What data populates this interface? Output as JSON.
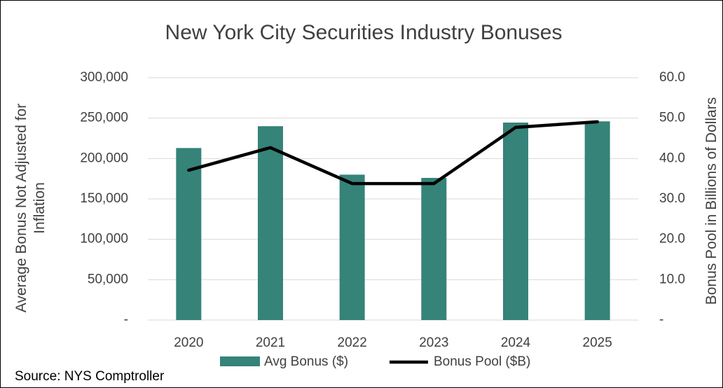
{
  "chart_data": {
    "type": "bar_line",
    "title": "New York City Securities Industry Bonuses",
    "y_label": "Average Bonus Not Adjusted for Inflation",
    "y2_label": "Bonus Pool in Billions of Dollars",
    "source": "Source: NYS Comptroller",
    "categories": [
      "2020",
      "2021",
      "2022",
      "2023",
      "2024",
      "2025"
    ],
    "series": [
      {
        "name": "Avg Bonus ($)",
        "type": "bar",
        "color": "#358379",
        "values": [
          213000,
          240000,
          180000,
          176000,
          244500,
          246000
        ]
      },
      {
        "name": "Bonus Pool ($B)",
        "type": "line",
        "axis": "y2",
        "color": "#000000",
        "values": [
          37.1,
          42.7,
          33.8,
          33.8,
          47.7,
          49.1
        ]
      }
    ],
    "ylim": [
      0,
      300000
    ],
    "yticks": [
      {
        "value": 0,
        "label": "-"
      },
      {
        "value": 50000,
        "label": "50,000"
      },
      {
        "value": 100000,
        "label": "100,000"
      },
      {
        "value": 150000,
        "label": "150,000"
      },
      {
        "value": 200000,
        "label": "200,000"
      },
      {
        "value": 250000,
        "label": "250,000"
      },
      {
        "value": 300000,
        "label": "300,000"
      }
    ],
    "y2lim": [
      0,
      60
    ],
    "y2ticks": [
      {
        "value": 0,
        "label": "-"
      },
      {
        "value": 10,
        "label": "10.0"
      },
      {
        "value": 20,
        "label": "20.0"
      },
      {
        "value": 30,
        "label": "30.0"
      },
      {
        "value": 40,
        "label": "40.0"
      },
      {
        "value": 50,
        "label": "50.0"
      },
      {
        "value": 60,
        "label": "60.0"
      }
    ],
    "grid": true
  }
}
